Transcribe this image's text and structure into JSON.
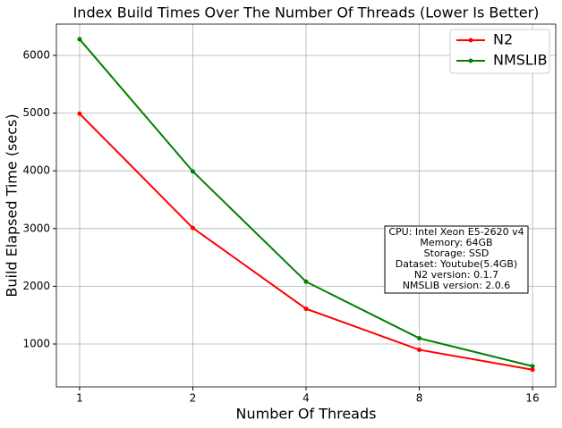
{
  "chart_data": {
    "type": "line",
    "title": "Index Build Times Over The Number Of Threads (Lower Is Better)",
    "x_label": "Number Of Threads",
    "y_label": "Build Elapsed Time (secs)",
    "categories": [
      "1",
      "2",
      "4",
      "8",
      "16"
    ],
    "series": [
      {
        "name": "N2",
        "color": "#ff0000",
        "values": [
          4990,
          3010,
          1610,
          900,
          555
        ]
      },
      {
        "name": "NMSLIB",
        "color": "#008000",
        "values": [
          6280,
          3990,
          2080,
          1100,
          615
        ]
      }
    ],
    "ylim": [
      257,
      6542
    ],
    "yticks": [
      1000,
      2000,
      3000,
      4000,
      5000,
      6000
    ],
    "grid": true,
    "legend": "upper right",
    "annotation": [
      "CPU: Intel Xeon E5-2620 v4",
      "Memory: 64GB",
      "Storage: SSD",
      "Dataset: Youtube(5.4GB)",
      "N2 version: 0.1.7",
      "NMSLIB version: 2.0.6"
    ]
  }
}
